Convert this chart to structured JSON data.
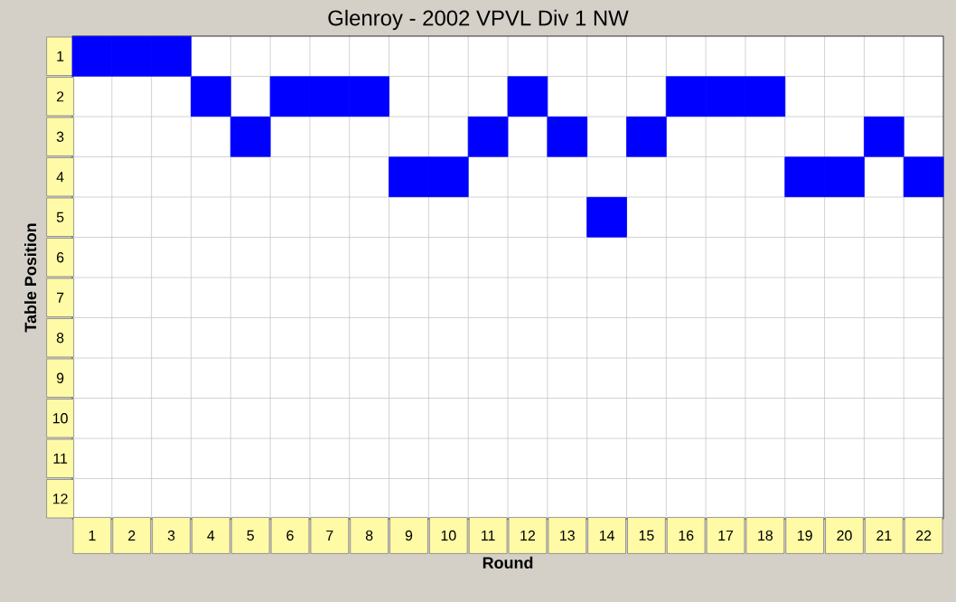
{
  "chart_data": {
    "type": "scatter",
    "title": "Glenroy - 2002 VPVL Div 1 NW",
    "xlabel": "Round",
    "ylabel": "Table Position",
    "categories": [
      "1",
      "2",
      "3",
      "4",
      "5",
      "6",
      "7",
      "8",
      "9",
      "10",
      "11",
      "12",
      "13",
      "14",
      "15",
      "16",
      "17",
      "18",
      "19",
      "20",
      "21",
      "22"
    ],
    "values": [
      1,
      1,
      1,
      2,
      3,
      2,
      2,
      2,
      4,
      4,
      3,
      2,
      3,
      5,
      3,
      2,
      2,
      2,
      4,
      4,
      3,
      4
    ],
    "color": "#0000ff",
    "marker": "square",
    "ylim": [
      12.5,
      0.5
    ],
    "yticks": [
      1,
      2,
      3,
      4,
      5,
      6,
      7,
      8,
      9,
      10,
      11,
      12
    ],
    "grid": true
  }
}
